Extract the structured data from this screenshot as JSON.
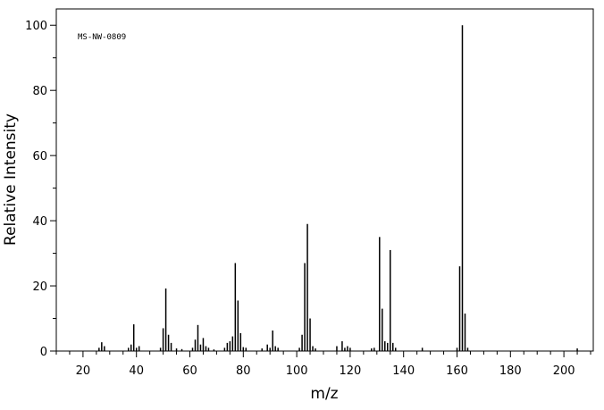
{
  "chart_data": {
    "type": "stick",
    "annotation": "MS-NW-0809",
    "x_label": "m/z",
    "y_label": "Relative Intensity",
    "x": [
      26,
      27,
      28,
      37,
      38,
      39,
      40,
      41,
      49,
      50,
      51,
      52,
      53,
      55,
      57,
      61,
      62,
      63,
      64,
      65,
      66,
      67,
      69,
      73,
      74,
      75,
      76,
      77,
      78,
      79,
      80,
      81,
      87,
      89,
      90,
      91,
      92,
      93,
      101,
      102,
      103,
      104,
      105,
      106,
      107,
      115,
      117,
      118,
      119,
      120,
      128,
      129,
      131,
      132,
      133,
      134,
      135,
      136,
      137,
      147,
      160,
      161,
      162,
      163,
      164,
      205
    ],
    "values": [
      1,
      2.7,
      1.5,
      1,
      2,
      8.2,
      1,
      1.5,
      1,
      7,
      19.2,
      5,
      2.5,
      0.8,
      0.6,
      1,
      3.5,
      8,
      2,
      4,
      1.5,
      1,
      0.5,
      1,
      2.5,
      3,
      4.5,
      27,
      15.5,
      5.5,
      1.2,
      1,
      0.8,
      2,
      1,
      6.3,
      1.5,
      1,
      1,
      5,
      27,
      39,
      10,
      1.5,
      0.8,
      1.5,
      3,
      1,
      1.5,
      1,
      0.8,
      1,
      35,
      13,
      3,
      2.5,
      31,
      2.5,
      1,
      1,
      1,
      26,
      100,
      11.5,
      1,
      0.8
    ],
    "color": "#000000",
    "xlim": [
      10,
      211
    ],
    "ylim": [
      0,
      105
    ],
    "xticks": [
      20,
      40,
      60,
      80,
      100,
      120,
      140,
      160,
      180,
      200
    ],
    "yticks": [
      0,
      20,
      40,
      60,
      80,
      100
    ],
    "x_minor_ticks": [
      10,
      15,
      25,
      30,
      35,
      45,
      50,
      55,
      65,
      70,
      75,
      85,
      90,
      95,
      105,
      110,
      115,
      125,
      130,
      135,
      145,
      150,
      155,
      165,
      170,
      175,
      185,
      190,
      195,
      205,
      210
    ],
    "y_minor_ticks": [
      10,
      30,
      50,
      70,
      90
    ]
  }
}
